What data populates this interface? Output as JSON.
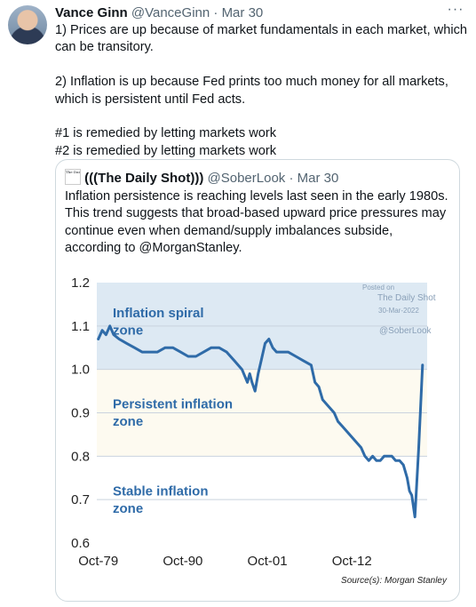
{
  "tweet": {
    "author_name": "Vance Ginn",
    "author_handle": "@VanceGinn",
    "separator": "·",
    "date": "Mar 30",
    "more_icon": "more-icon",
    "text": "1) Prices are up because of market fundamentals in each market, which can be transitory.\n\n2) Inflation is up because Fed prints too much money for all markets, which is persistent until Fed acts.\n\n#1 is remedied by letting markets work\n#2 is remedied by letting markets work"
  },
  "quoted": {
    "avatar_text": "The Daily Shot",
    "author_name": "(((The Daily Shot)))",
    "author_handle": "@SoberLook",
    "separator": "·",
    "date": "Mar 30",
    "text": "Inflation persistence is reaching levels last seen in the early 1980s. This trend suggests that broad-based upward price pressures may continue even when demand/supply imbalances subside, according to @MorganStanley."
  },
  "chart_data": {
    "type": "line",
    "yticks": [
      "1.2",
      "1.1",
      "1.0",
      "0.9",
      "0.8",
      "0.7",
      "0.6"
    ],
    "ylim": [
      0.6,
      1.2
    ],
    "xticks": [
      "Oct-79",
      "Oct-90",
      "Oct-01",
      "Oct-12"
    ],
    "zones": [
      {
        "label_line1": "Inflation spiral",
        "label_line2": "zone",
        "from": 1.0,
        "to": 1.2,
        "color": "#dde9f3"
      },
      {
        "label_line1": "Persistent inflation",
        "label_line2": "zone",
        "from": 0.8,
        "to": 1.0,
        "color": "#fdfaf0"
      },
      {
        "label_line1": "Stable inflation",
        "label_line2": "zone",
        "from": 0.6,
        "to": 0.8,
        "color": "#ffffff"
      }
    ],
    "watermark": {
      "line1": "Posted on",
      "line2": "The Daily Shot",
      "line3": "30-Mar-2022",
      "line4": "@SoberLook"
    },
    "source": "Source(s): Morgan Stanley",
    "line_color": "#2f6ba8",
    "series": [
      {
        "x": [
          1979.8,
          1980.3,
          1980.8,
          1981.3,
          1981.8,
          1982.5,
          1983.5,
          1984.5,
          1985.5,
          1986.5,
          1987.5,
          1988.5,
          1989.5,
          1990.5,
          1991.5,
          1992.5,
          1993.5,
          1994.5,
          1995.5,
          1996.5,
          1997.5,
          1998.5,
          1999.2,
          1999.5,
          1999.8,
          2000.2,
          2000.6,
          2001.0,
          2001.5,
          2002.0,
          2002.5,
          2003.0,
          2003.5,
          2004.5,
          2005.5,
          2006.5,
          2007.5,
          2008.0,
          2008.5,
          2009.0,
          2009.5,
          2010.0,
          2010.5,
          2011.0,
          2011.5,
          2012.0,
          2012.5,
          2013.0,
          2013.5,
          2014.0,
          2014.5,
          2015.0,
          2015.5,
          2016.0,
          2016.5,
          2017.0,
          2017.5,
          2018.0,
          2018.5,
          2019.0,
          2019.5,
          2020.0,
          2020.3,
          2020.6,
          2021.0,
          2021.5,
          2022.0
        ],
        "y": [
          1.07,
          1.09,
          1.08,
          1.1,
          1.08,
          1.07,
          1.06,
          1.05,
          1.04,
          1.04,
          1.04,
          1.05,
          1.05,
          1.04,
          1.03,
          1.03,
          1.04,
          1.05,
          1.05,
          1.04,
          1.02,
          1.0,
          0.97,
          0.99,
          0.97,
          0.95,
          0.99,
          1.02,
          1.06,
          1.07,
          1.05,
          1.04,
          1.04,
          1.04,
          1.03,
          1.02,
          1.01,
          0.97,
          0.96,
          0.93,
          0.92,
          0.91,
          0.9,
          0.88,
          0.87,
          0.86,
          0.85,
          0.84,
          0.83,
          0.82,
          0.8,
          0.79,
          0.8,
          0.79,
          0.79,
          0.8,
          0.8,
          0.8,
          0.79,
          0.79,
          0.78,
          0.75,
          0.72,
          0.71,
          0.66,
          0.82,
          1.01
        ]
      }
    ]
  }
}
